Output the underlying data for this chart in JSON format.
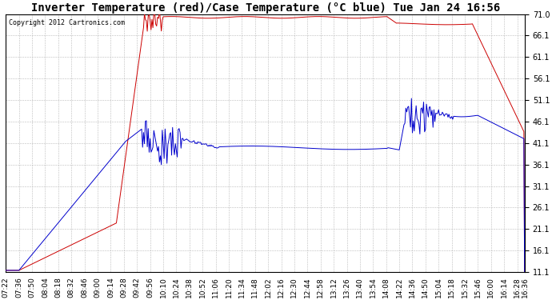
{
  "title": "Inverter Temperature (red)/Case Temperature (°C blue) Tue Jan 24 16:56",
  "copyright": "Copyright 2012 Cartronics.com",
  "ylim": [
    11.1,
    71.0
  ],
  "yticks": [
    11.1,
    16.1,
    21.1,
    26.1,
    31.1,
    36.1,
    41.1,
    46.1,
    51.1,
    56.1,
    61.1,
    66.1,
    71.0
  ],
  "bg_color": "#ffffff",
  "grid_color": "#bbbbbb",
  "red_color": "#cc0000",
  "blue_color": "#0000cc",
  "title_fontsize": 10,
  "tick_fontsize": 7,
  "xtick_labels": [
    "07:22",
    "07:36",
    "07:50",
    "08:04",
    "08:18",
    "08:32",
    "08:46",
    "09:00",
    "09:14",
    "09:28",
    "09:42",
    "09:56",
    "10:10",
    "10:24",
    "10:38",
    "10:52",
    "11:06",
    "11:20",
    "11:34",
    "11:48",
    "12:02",
    "12:16",
    "12:30",
    "12:44",
    "12:58",
    "13:12",
    "13:26",
    "13:40",
    "13:54",
    "14:08",
    "14:22",
    "14:36",
    "14:50",
    "15:04",
    "15:18",
    "15:32",
    "15:46",
    "16:00",
    "16:14",
    "16:28",
    "16:36"
  ]
}
